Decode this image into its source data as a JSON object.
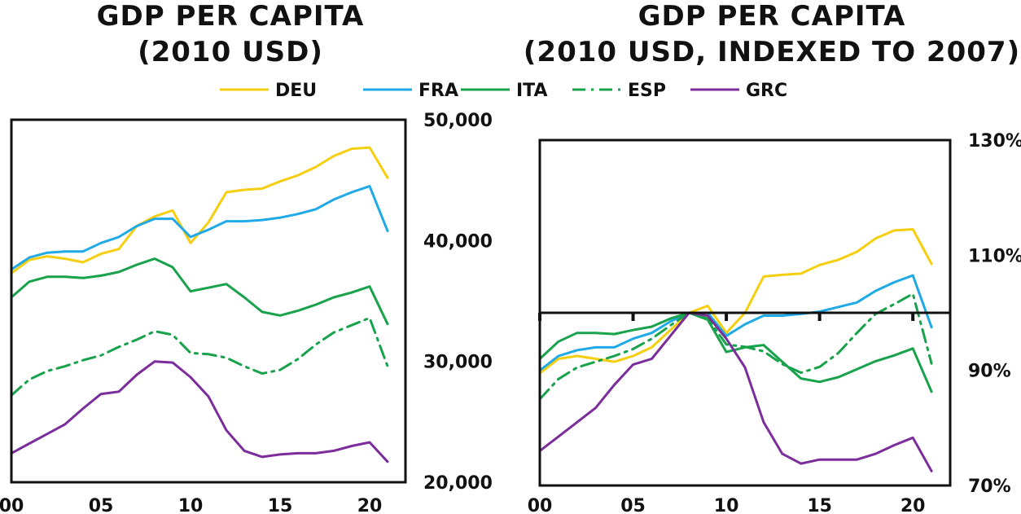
{
  "chart_data": [
    {
      "type": "line",
      "title": [
        "GDP PER CAPITA",
        "(2010 USD)"
      ],
      "xlabel": "",
      "ylabel": "",
      "xlim": [
        0,
        22
      ],
      "ylim": [
        20000,
        50000
      ],
      "x_tick_values": [
        0,
        5,
        10,
        15,
        20
      ],
      "x_tick_labels": [
        "00",
        "05",
        "10",
        "15",
        "20"
      ],
      "y_tick_values": [
        20000,
        30000,
        40000,
        50000
      ],
      "y_tick_labels": [
        "20,000",
        "30,000",
        "40,000",
        "50,000"
      ],
      "y_axis_side": "right",
      "grid": false,
      "x": [
        0,
        1,
        2,
        3,
        4,
        5,
        6,
        7,
        8,
        9,
        10,
        11,
        12,
        13,
        14,
        15,
        16,
        17,
        18,
        19,
        20,
        21
      ],
      "series": [
        {
          "name": "DEU",
          "values": [
            37300,
            38400,
            38700,
            38500,
            38200,
            38900,
            39300,
            41200,
            42000,
            42500,
            39800,
            41500,
            44000,
            44200,
            44300,
            44900,
            45400,
            46100,
            47000,
            47600,
            47700,
            45200
          ]
        },
        {
          "name": "FRA",
          "values": [
            37600,
            38600,
            39000,
            39100,
            39100,
            39800,
            40300,
            41200,
            41800,
            41800,
            40300,
            40900,
            41600,
            41600,
            41700,
            41900,
            42200,
            42600,
            43400,
            44000,
            44500,
            40800
          ]
        },
        {
          "name": "ITA",
          "values": [
            35300,
            36600,
            37000,
            37000,
            36900,
            37100,
            37400,
            38000,
            38500,
            37800,
            35800,
            36100,
            36400,
            35300,
            34100,
            33800,
            34200,
            34700,
            35300,
            35700,
            36200,
            33100
          ]
        },
        {
          "name": "ESP",
          "values": [
            27200,
            28500,
            29200,
            29600,
            30100,
            30500,
            31200,
            31800,
            32500,
            32200,
            30700,
            30600,
            30300,
            29600,
            29000,
            29300,
            30200,
            31400,
            32400,
            33000,
            33600,
            29600
          ]
        },
        {
          "name": "GRC",
          "values": [
            22400,
            23200,
            24000,
            24800,
            26100,
            27300,
            27500,
            28900,
            30000,
            29900,
            28700,
            27100,
            24300,
            22600,
            22100,
            22300,
            22400,
            22400,
            22600,
            23000,
            23300,
            21700
          ]
        }
      ]
    },
    {
      "type": "line",
      "title": [
        "GDP PER CAPITA",
        "(2010 USD, INDEXED TO 2007)"
      ],
      "xlabel": "",
      "ylabel": "",
      "xlim": [
        0,
        22
      ],
      "ylim": [
        70,
        130
      ],
      "x_tick_values": [
        0,
        5,
        10,
        15,
        20
      ],
      "x_tick_labels": [
        "00",
        "05",
        "10",
        "15",
        "20"
      ],
      "y_tick_values": [
        70,
        90,
        110,
        130
      ],
      "y_tick_labels": [
        "70%",
        "90%",
        "110%",
        "130%"
      ],
      "y_axis_side": "right",
      "grid": false,
      "reference_line": 100,
      "x": [
        0,
        1,
        2,
        3,
        4,
        5,
        6,
        7,
        8,
        9,
        10,
        11,
        12,
        13,
        14,
        15,
        16,
        17,
        18,
        19,
        20,
        21
      ],
      "series": [
        {
          "name": "DEU",
          "values": [
            89.5,
            92.0,
            92.5,
            92.0,
            91.5,
            92.5,
            94.0,
            97.0,
            100.0,
            101.2,
            96.5,
            100.0,
            106.3,
            106.6,
            106.8,
            108.3,
            109.2,
            110.6,
            112.9,
            114.3,
            114.5,
            108.5
          ]
        },
        {
          "name": "FRA",
          "values": [
            90.0,
            92.5,
            93.5,
            94.0,
            94.0,
            95.5,
            96.5,
            98.5,
            100.0,
            100.0,
            96.0,
            98.0,
            99.5,
            99.5,
            99.8,
            100.2,
            101.0,
            101.8,
            103.8,
            105.3,
            106.5,
            97.5
          ]
        },
        {
          "name": "ITA",
          "values": [
            92.0,
            95.0,
            96.5,
            96.5,
            96.3,
            97.0,
            97.6,
            99.0,
            100.0,
            98.8,
            93.2,
            94.0,
            94.4,
            91.5,
            88.6,
            88.0,
            88.8,
            90.2,
            91.6,
            92.6,
            93.8,
            86.3
          ]
        },
        {
          "name": "ESP",
          "values": [
            85.0,
            88.5,
            90.5,
            91.5,
            92.5,
            93.7,
            95.5,
            97.8,
            100.0,
            99.0,
            94.5,
            94.1,
            93.3,
            91.1,
            89.6,
            90.6,
            93.0,
            96.5,
            99.8,
            101.5,
            103.3,
            91.2
          ]
        },
        {
          "name": "GRC",
          "values": [
            76.0,
            78.5,
            81.0,
            83.5,
            87.5,
            91.0,
            92.0,
            96.0,
            100.0,
            99.5,
            95.5,
            90.5,
            81.0,
            75.5,
            73.8,
            74.5,
            74.5,
            74.5,
            75.5,
            77.0,
            78.3,
            72.5
          ]
        }
      ]
    }
  ],
  "legend": [
    {
      "name": "DEU",
      "color": "#F5CF0F",
      "dash": "solid"
    },
    {
      "name": "FRA",
      "color": "#1FA9E6",
      "dash": "solid"
    },
    {
      "name": "ITA",
      "color": "#18A24B",
      "dash": "solid"
    },
    {
      "name": "ESP",
      "color": "#18A24B",
      "dash": "dashdot"
    },
    {
      "name": "GRC",
      "color": "#7B2D9B",
      "dash": "solid"
    }
  ]
}
